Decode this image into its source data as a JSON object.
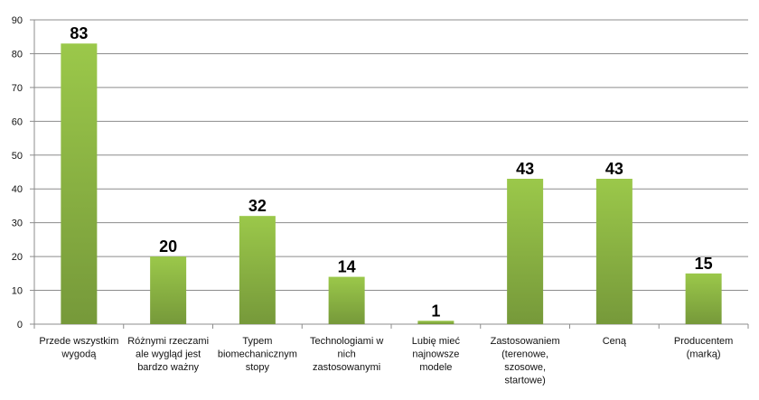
{
  "chart_data": {
    "type": "bar",
    "categories": [
      "Przede wszystkim wygodą",
      "Różnymi rzeczami ale wygląd jest bardzo ważny",
      "Typem biomechanicznym stopy",
      "Technologiami w nich zastosowanymi",
      "Lubię mieć najnowsze modele",
      "Zastosowaniem (terenowe, szosowe, startowe)",
      "Ceną",
      "Producentem (marką)"
    ],
    "category_label_lines": [
      [
        "Przede wszystkim",
        "wygodą"
      ],
      [
        "Różnymi rzeczami",
        "ale wygląd jest",
        "bardzo ważny"
      ],
      [
        "Typem",
        "biomechanicznym",
        "stopy"
      ],
      [
        "Technologiami w",
        "nich",
        "zastosowanymi"
      ],
      [
        "Lubię mieć",
        "najnowsze",
        "modele"
      ],
      [
        "Zastosowaniem",
        "(terenowe,",
        "szosowe,",
        "startowe)"
      ],
      [
        "Ceną"
      ],
      [
        "Producentem",
        "(marką)"
      ]
    ],
    "values": [
      83,
      20,
      32,
      14,
      1,
      43,
      43,
      15
    ],
    "ylim": [
      0,
      90
    ],
    "yticks": [
      0,
      10,
      20,
      30,
      40,
      50,
      60,
      70,
      80,
      90
    ],
    "grid": true,
    "legend": "none",
    "title": "",
    "xlabel": "",
    "ylabel": "",
    "colors": {
      "bar_top": "#9bc84a",
      "bar_bottom": "#76993a",
      "grid": "#8c8c8c",
      "axis": "#8c8c8c",
      "text": "#111111"
    }
  }
}
